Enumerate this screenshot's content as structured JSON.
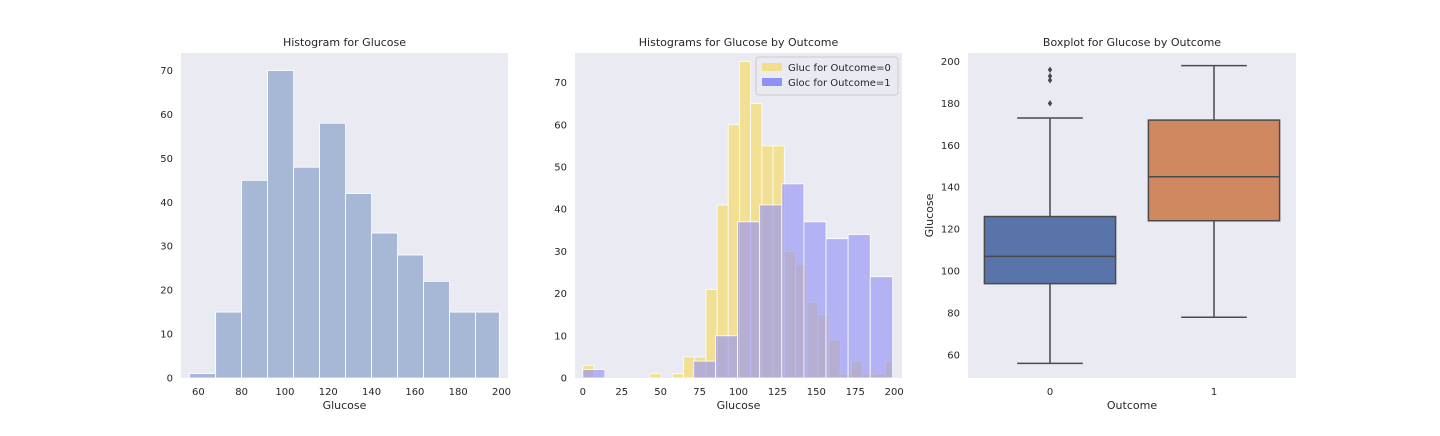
{
  "chart_data": [
    {
      "type": "bar",
      "subtype": "histogram",
      "title": "Histogram for Glucose",
      "xlabel": "Glucose",
      "ylabel": "",
      "xlim": [
        52,
        203
      ],
      "ylim": [
        0,
        74
      ],
      "xticks": [
        60,
        80,
        100,
        120,
        140,
        160,
        180,
        200
      ],
      "yticks": [
        0,
        10,
        20,
        30,
        40,
        50,
        60,
        70
      ],
      "grid": false,
      "bins": [
        {
          "x0": 56,
          "x1": 68,
          "value": 1
        },
        {
          "x0": 68,
          "x1": 80,
          "value": 15
        },
        {
          "x0": 80,
          "x1": 92,
          "value": 45
        },
        {
          "x0": 92,
          "x1": 104,
          "value": 70
        },
        {
          "x0": 104,
          "x1": 116,
          "value": 48
        },
        {
          "x0": 116,
          "x1": 128,
          "value": 58
        },
        {
          "x0": 128,
          "x1": 140,
          "value": 42
        },
        {
          "x0": 140,
          "x1": 152,
          "value": 33
        },
        {
          "x0": 152,
          "x1": 164,
          "value": 28
        },
        {
          "x0": 164,
          "x1": 176,
          "value": 22
        },
        {
          "x0": 176,
          "x1": 188,
          "value": 15
        },
        {
          "x0": 188,
          "x1": 199,
          "value": 15
        }
      ],
      "color": "#a7b8d6"
    },
    {
      "type": "bar",
      "subtype": "overlaid-histogram",
      "title": "Histograms for Glucose by Outcome",
      "xlabel": "Glucose",
      "ylabel": "",
      "xlim": [
        -5,
        205
      ],
      "ylim": [
        0,
        77
      ],
      "xticks": [
        0,
        25,
        50,
        75,
        100,
        125,
        150,
        175,
        200
      ],
      "yticks": [
        0,
        10,
        20,
        30,
        40,
        50,
        60,
        70
      ],
      "grid": false,
      "legend_position": "top-right",
      "series": [
        {
          "name": "Gluc for Outcome=0",
          "color": "#f2de8a",
          "bins": [
            {
              "x0": 0,
              "x1": 7.2,
              "value": 3
            },
            {
              "x0": 43.1,
              "x1": 50.3,
              "value": 1
            },
            {
              "x0": 57.5,
              "x1": 64.7,
              "value": 1
            },
            {
              "x0": 64.7,
              "x1": 71.9,
              "value": 5
            },
            {
              "x0": 71.9,
              "x1": 79.1,
              "value": 5
            },
            {
              "x0": 79.1,
              "x1": 86.3,
              "value": 21
            },
            {
              "x0": 86.3,
              "x1": 93.4,
              "value": 41
            },
            {
              "x0": 93.4,
              "x1": 100.6,
              "value": 60
            },
            {
              "x0": 100.6,
              "x1": 107.8,
              "value": 75
            },
            {
              "x0": 107.8,
              "x1": 115,
              "value": 65
            },
            {
              "x0": 115,
              "x1": 122.2,
              "value": 55
            },
            {
              "x0": 122.2,
              "x1": 129.4,
              "value": 55
            },
            {
              "x0": 129.4,
              "x1": 136.6,
              "value": 30
            },
            {
              "x0": 136.6,
              "x1": 143.8,
              "value": 27
            },
            {
              "x0": 143.8,
              "x1": 151,
              "value": 18
            },
            {
              "x0": 151,
              "x1": 158.1,
              "value": 15
            },
            {
              "x0": 158.1,
              "x1": 165.3,
              "value": 9
            },
            {
              "x0": 165.3,
              "x1": 172.5,
              "value": 1
            },
            {
              "x0": 172.5,
              "x1": 179.7,
              "value": 4
            },
            {
              "x0": 179.7,
              "x1": 186.9,
              "value": 1
            },
            {
              "x0": 186.9,
              "x1": 194.1,
              "value": 1
            },
            {
              "x0": 194.1,
              "x1": 199,
              "value": 4
            }
          ]
        },
        {
          "name": "Gloc for Outcome=1",
          "color": "#8f8ff5",
          "bins": [
            {
              "x0": 0,
              "x1": 14.2,
              "value": 2
            },
            {
              "x0": 71,
              "x1": 85.2,
              "value": 4
            },
            {
              "x0": 85.2,
              "x1": 99.4,
              "value": 10
            },
            {
              "x0": 99.4,
              "x1": 113.6,
              "value": 37
            },
            {
              "x0": 113.6,
              "x1": 127.8,
              "value": 41
            },
            {
              "x0": 127.8,
              "x1": 142,
              "value": 46
            },
            {
              "x0": 142,
              "x1": 156.2,
              "value": 37
            },
            {
              "x0": 156.2,
              "x1": 170.4,
              "value": 33
            },
            {
              "x0": 170.4,
              "x1": 184.6,
              "value": 34
            },
            {
              "x0": 184.6,
              "x1": 199,
              "value": 24
            }
          ]
        }
      ]
    },
    {
      "type": "boxplot",
      "title": "Boxplot for Glucose by Outcome",
      "xlabel": "Outcome",
      "ylabel": "Glucose",
      "ylim": [
        49,
        204
      ],
      "yticks": [
        60,
        80,
        100,
        120,
        140,
        160,
        180,
        200
      ],
      "categories": [
        "0",
        "1"
      ],
      "grid": false,
      "boxes": [
        {
          "category": "0",
          "whisker_low": 56,
          "q1": 94,
          "median": 107,
          "q3": 126,
          "whisker_high": 173,
          "outliers": [
            180,
            191,
            193,
            196
          ],
          "color": "#5874a8"
        },
        {
          "category": "1",
          "whisker_low": 78,
          "q1": 124,
          "median": 145,
          "q3": 172,
          "whisker_high": 198,
          "outliers": [],
          "color": "#d08860"
        }
      ]
    }
  ]
}
